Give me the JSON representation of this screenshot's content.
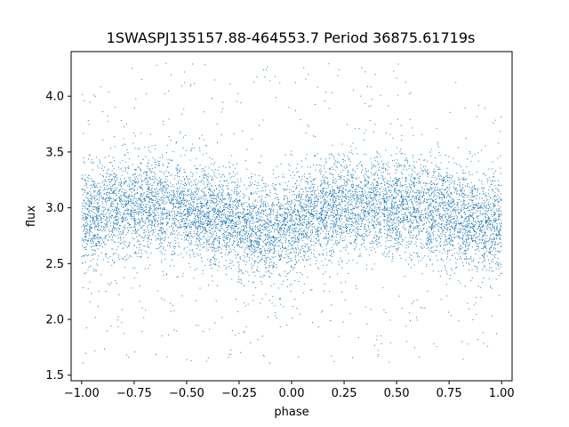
{
  "chart_data": {
    "type": "scatter",
    "title": "1SWASPJ135157.88-464553.7 Period 36875.61719s",
    "xlabel": "phase",
    "ylabel": "flux",
    "xlim": [
      -1.05,
      1.05
    ],
    "ylim": [
      1.45,
      4.4
    ],
    "xticks": [
      -1.0,
      -0.75,
      -0.5,
      -0.25,
      0.0,
      0.25,
      0.5,
      0.75,
      1.0
    ],
    "xtick_labels": [
      "−1.00",
      "−0.75",
      "−0.50",
      "−0.25",
      "0.00",
      "0.25",
      "0.50",
      "0.75",
      "1.00"
    ],
    "yticks": [
      1.5,
      2.0,
      2.5,
      3.0,
      3.5,
      4.0
    ],
    "ytick_labels": [
      "1.5",
      "2.0",
      "2.5",
      "3.0",
      "3.5",
      "4.0"
    ],
    "grid": false,
    "marker_color": "#1f77b4",
    "light_curve": {
      "phase": [
        -1.0,
        -0.875,
        -0.75,
        -0.625,
        -0.5,
        -0.375,
        -0.25,
        -0.125,
        0.0,
        0.125,
        0.25,
        0.375,
        0.5,
        0.625,
        0.75,
        0.875,
        1.0
      ],
      "median_flux": [
        2.92,
        2.98,
        3.02,
        3.0,
        2.98,
        2.93,
        2.85,
        2.8,
        2.85,
        2.95,
        3.02,
        3.02,
        3.0,
        3.0,
        2.95,
        2.85,
        2.85
      ]
    },
    "scatter_sigma": 0.22,
    "flux_range": [
      1.6,
      4.3
    ]
  }
}
